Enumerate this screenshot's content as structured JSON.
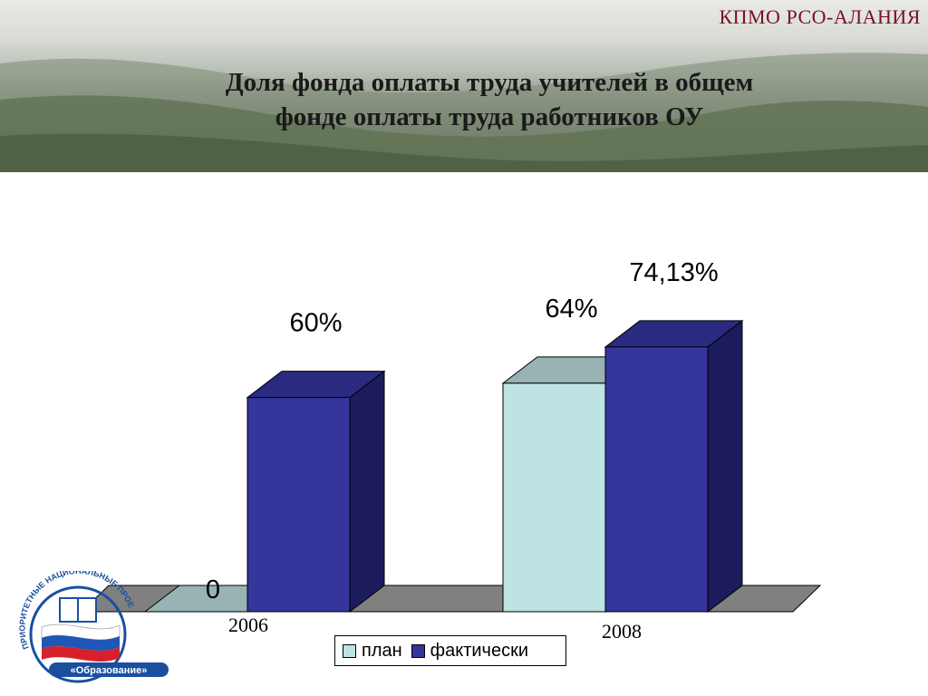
{
  "header": {
    "org": "КПМО РСО-АЛАНИЯ",
    "title_line1": "Доля фонда оплаты труда учителей в общем",
    "title_line2": "фонде оплаты труда работников ОУ"
  },
  "chart_data": {
    "type": "bar",
    "categories": [
      "2006",
      "2008"
    ],
    "series": [
      {
        "name": "план",
        "values": [
          0,
          64
        ],
        "labels": [
          "0",
          "64%"
        ],
        "color": "#bde3e3",
        "side": "#2a2a6e",
        "top": "#97b3b3"
      },
      {
        "name": "фактически",
        "values": [
          60,
          74.13
        ],
        "labels": [
          "60%",
          "74,13%"
        ],
        "color": "#35359c",
        "side": "#1c1c5c",
        "top": "#2a2a80"
      }
    ],
    "ylim": [
      0,
      100
    ],
    "grid": false,
    "legend": "bottom"
  },
  "logo": {
    "ring_text": "ПРИОРИТЕТНЫЕ НАЦИОНАЛЬНЫЕ ПРОЕКТЫ",
    "badge": "«Образование»"
  }
}
